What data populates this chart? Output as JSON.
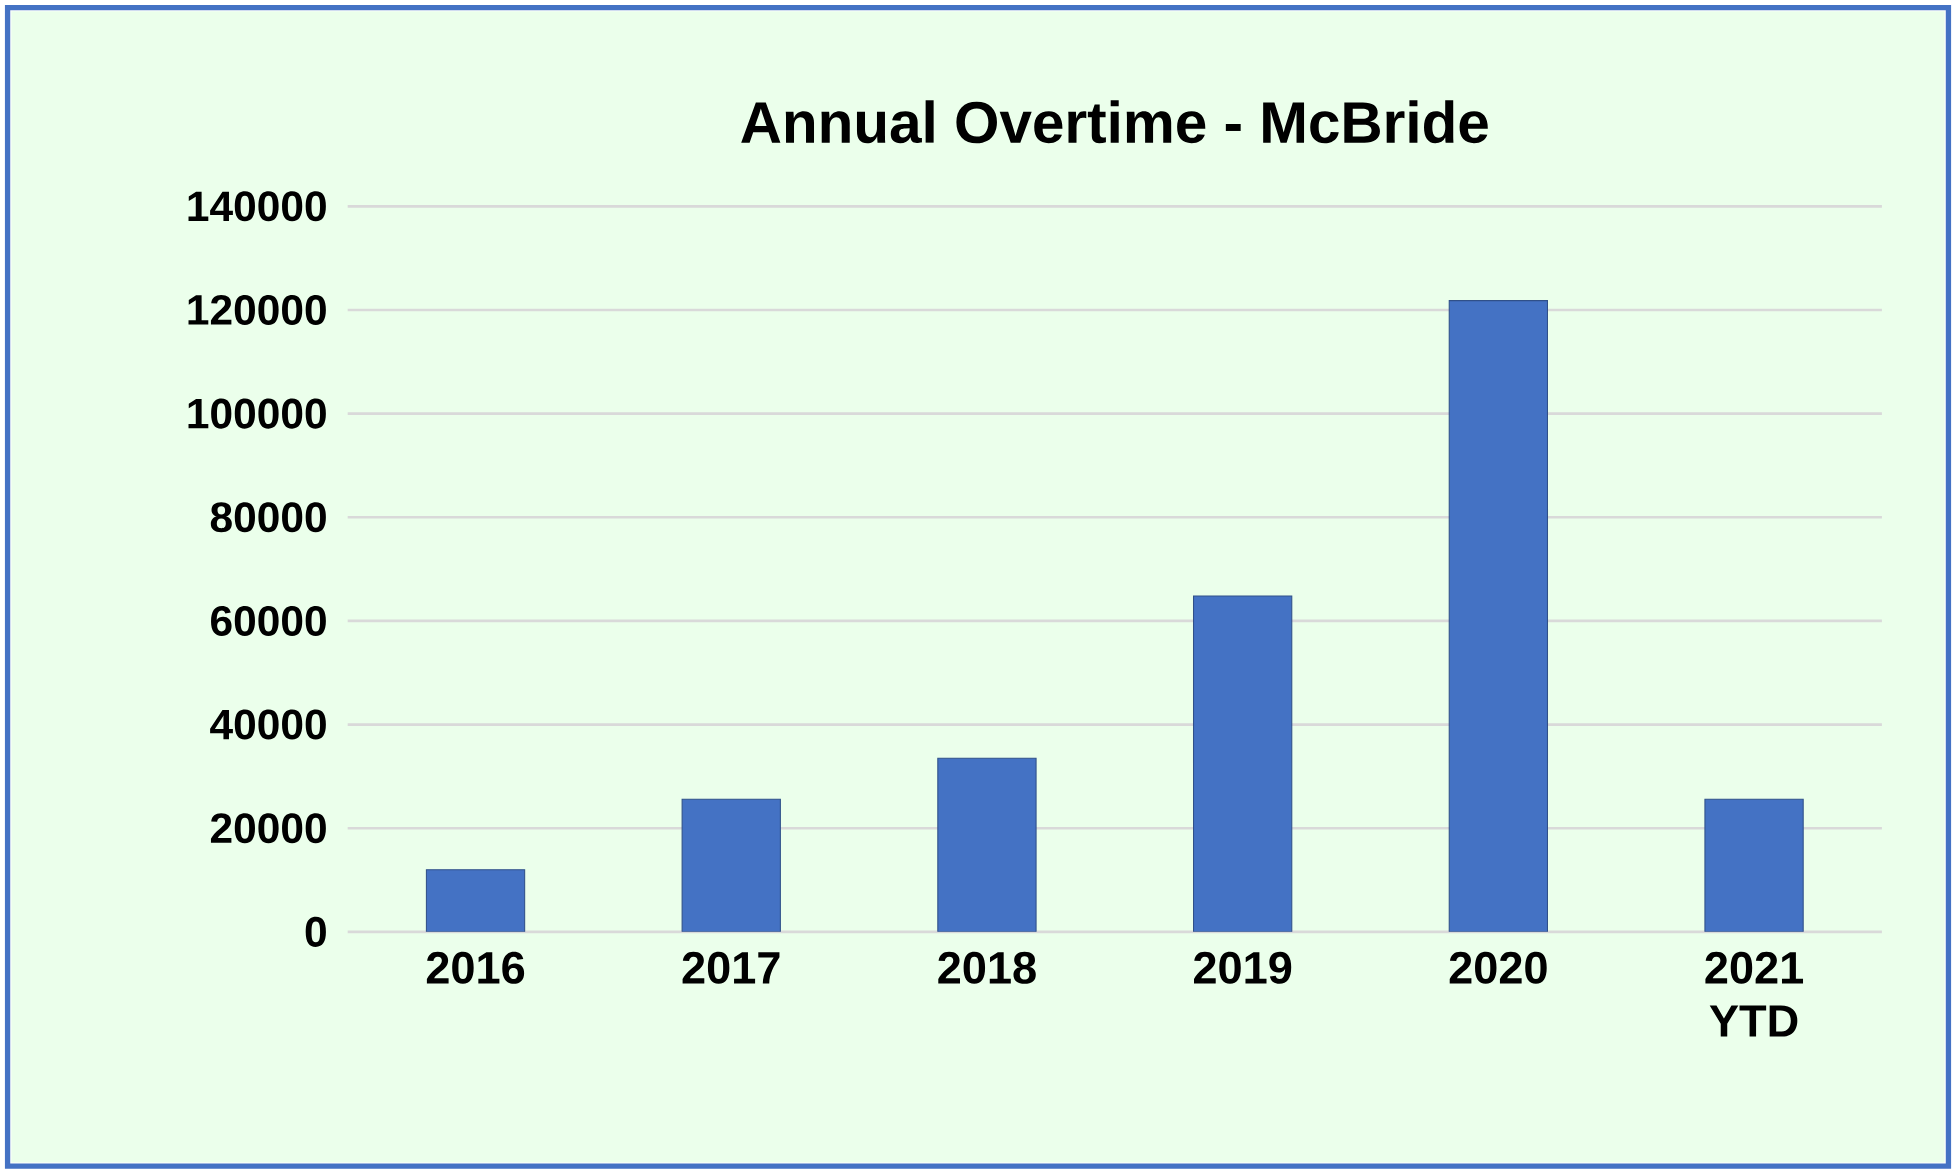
{
  "chart_data": {
    "type": "bar",
    "title": "Annual Overtime - McBride",
    "categories": [
      "2016",
      "2017",
      "2018",
      "2019",
      "2020",
      "2021 YTD"
    ],
    "values": [
      12000,
      25600,
      33500,
      64800,
      121800,
      25600
    ],
    "color": "#4472c4",
    "ylim": [
      0,
      140000
    ],
    "yticks": [
      0,
      20000,
      40000,
      60000,
      80000,
      100000,
      120000,
      140000
    ],
    "grid": "y"
  }
}
